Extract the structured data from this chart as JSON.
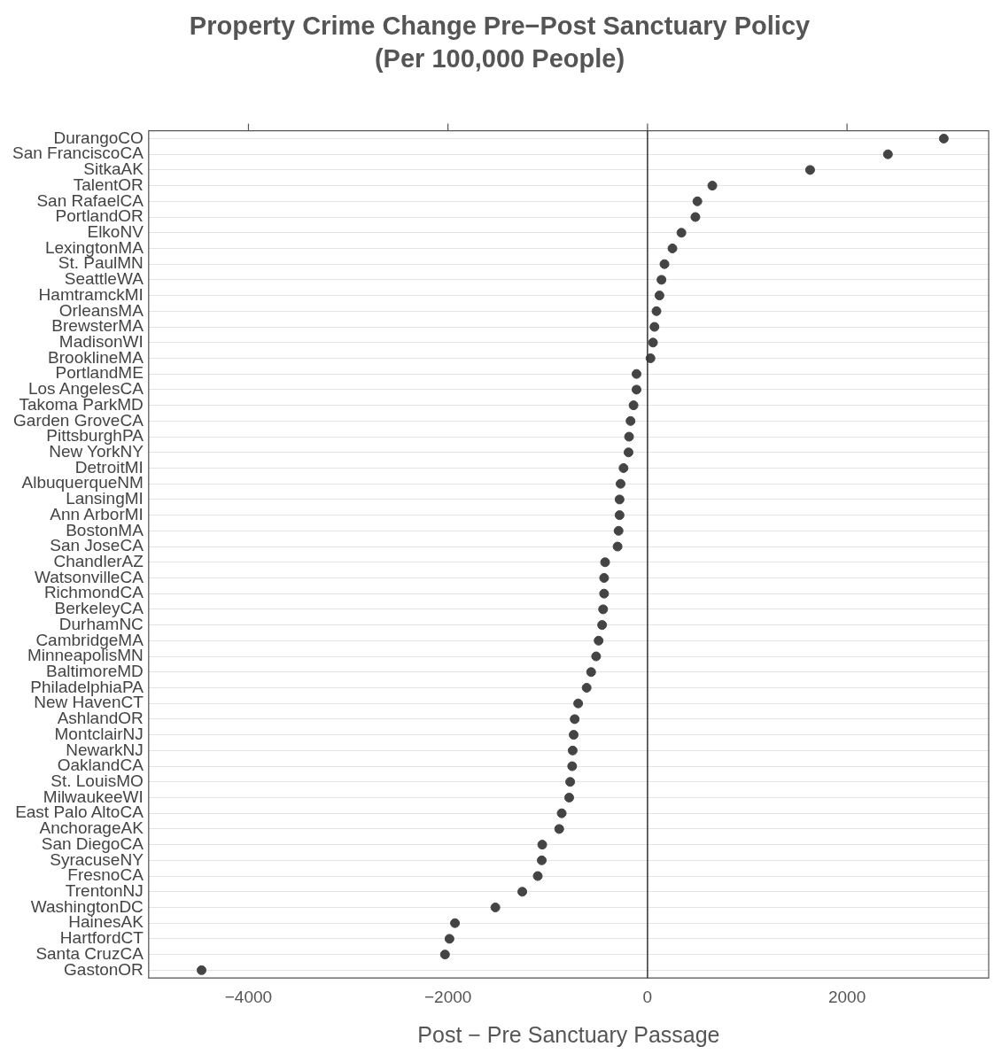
{
  "chart_data": {
    "type": "scatter",
    "title": "Property Crime Change Pre−Post Sanctuary Policy",
    "subtitle": "(Per 100,000 People)",
    "xlabel": "Post − Pre Sanctuary Passage",
    "categories": [
      "DurangoCO",
      "San FranciscoCA",
      "SitkaAK",
      "TalentOR",
      "San RafaelCA",
      "PortlandOR",
      "ElkoNV",
      "LexingtonMA",
      "St. PaulMN",
      "SeattleWA",
      "HamtramckMI",
      "OrleansMA",
      "BrewsterMA",
      "MadisonWI",
      "BrooklineMA",
      "PortlandME",
      "Los AngelesCA",
      "Takoma ParkMD",
      "Garden GroveCA",
      "PittsburghPA",
      "New YorkNY",
      "DetroitMI",
      "AlbuquerqueNM",
      "LansingMI",
      "Ann ArborMI",
      "BostonMA",
      "San JoseCA",
      "ChandlerAZ",
      "WatsonvilleCA",
      "RichmondCA",
      "BerkeleyCA",
      "DurhamNC",
      "CambridgeMA",
      "MinneapolisMN",
      "BaltimoreMD",
      "PhiladelphiaPA",
      "New HavenCT",
      "AshlandOR",
      "MontclairNJ",
      "NewarkNJ",
      "OaklandCA",
      "St. LouisMO",
      "MilwaukeeWI",
      "East Palo AltoCA",
      "AnchorageAK",
      "San DiegoCA",
      "SyracuseNY",
      "FresnoCA",
      "TrentonNJ",
      "WashingtonDC",
      "HainesAK",
      "HartfordCT",
      "Santa CruzCA",
      "GastonOR"
    ],
    "values": [
      2970,
      2410,
      1630,
      650,
      500,
      480,
      340,
      250,
      170,
      140,
      120,
      90,
      70,
      55,
      30,
      -110,
      -110,
      -140,
      -170,
      -185,
      -190,
      -240,
      -270,
      -280,
      -280,
      -290,
      -300,
      -425,
      -435,
      -435,
      -445,
      -455,
      -490,
      -515,
      -565,
      -610,
      -695,
      -730,
      -740,
      -750,
      -755,
      -775,
      -785,
      -860,
      -885,
      -1055,
      -1060,
      -1100,
      -1255,
      -1525,
      -1930,
      -1985,
      -2030,
      -4470
    ],
    "color": "#444444",
    "marker": "circle",
    "orientation": "horizontal",
    "xlim": [
      -5000,
      3420
    ],
    "xticks": [
      {
        "value": -4000,
        "label": "−4000"
      },
      {
        "value": -2000,
        "label": "−2000"
      },
      0,
      2000
    ],
    "grid": "y",
    "ref_lines": [
      {
        "axis": "x",
        "value": 0,
        "color": "#333333"
      }
    ]
  }
}
